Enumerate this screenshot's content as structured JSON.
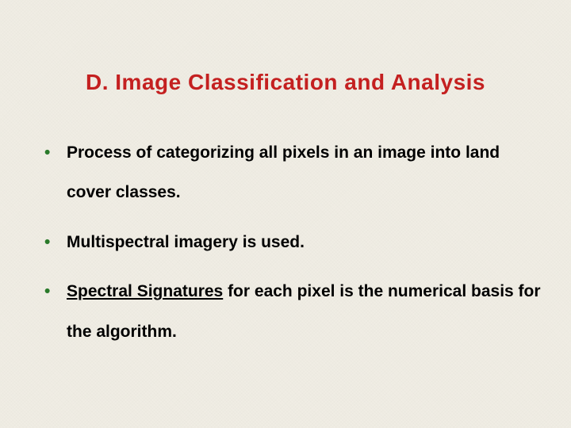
{
  "slide": {
    "background_color": "#f0ede4",
    "title": {
      "text": "D. Image Classification and Analysis",
      "color": "#c42020",
      "fontsize": 28,
      "font_weight": "bold"
    },
    "bullets": [
      {
        "marker": "•",
        "marker_color": "#2a7a2a",
        "segments": [
          {
            "text": "Process of categorizing all pixels in an image into land cover classes.",
            "underline": false
          }
        ]
      },
      {
        "marker": "•",
        "marker_color": "#2a7a2a",
        "segments": [
          {
            "text": "Multispectral imagery is used.",
            "underline": false
          }
        ]
      },
      {
        "marker": "•",
        "marker_color": "#2a7a2a",
        "segments": [
          {
            "text": "Spectral Signatures",
            "underline": true
          },
          {
            "text": " for each pixel is the numerical basis for the algorithm.",
            "underline": false
          }
        ]
      }
    ],
    "body_fontsize": 21,
    "body_color": "#000000",
    "line_height": 2.4
  }
}
